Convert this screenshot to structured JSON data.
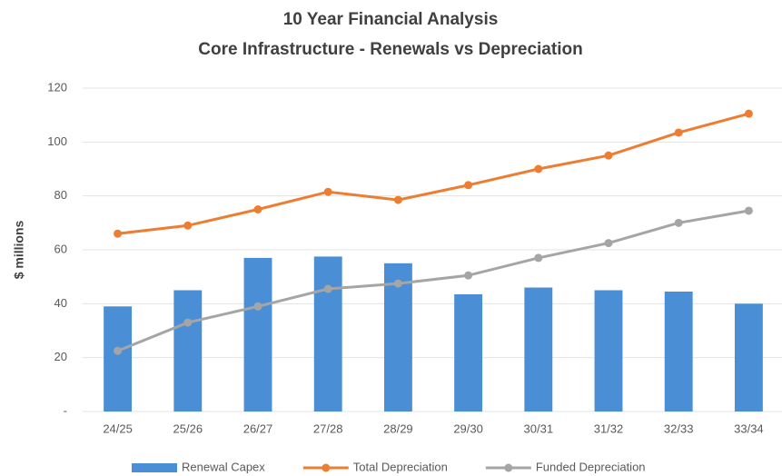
{
  "chart_data": {
    "type": "bar_line",
    "title": "10 Year Financial Analysis",
    "subtitle": "Core Infrastructure - Renewals vs Depreciation",
    "y_label": "$ millions",
    "categories": [
      "24/25",
      "25/26",
      "26/27",
      "27/28",
      "28/29",
      "29/30",
      "30/31",
      "31/32",
      "32/33",
      "33/34"
    ],
    "series": [
      {
        "name": "Renewal Capex",
        "type": "bar",
        "color": "#4a8fd6",
        "values": [
          39,
          45,
          57,
          57.5,
          55,
          43.5,
          46,
          45,
          44.5,
          40
        ]
      },
      {
        "name": "Total Depreciation",
        "type": "line",
        "color": "#ed7d31",
        "values": [
          66,
          69,
          75,
          81.5,
          78.5,
          84,
          90,
          95,
          103.5,
          110.5
        ]
      },
      {
        "name": "Funded Depreciation",
        "type": "line",
        "color": "#a5a5a5",
        "values": [
          22.5,
          33,
          39,
          45.5,
          47.5,
          50.5,
          57,
          62.5,
          70,
          74.5
        ]
      }
    ],
    "ylim": [
      0,
      120
    ],
    "yticks": [
      {
        "value": 0,
        "label": "-"
      },
      20,
      40,
      60,
      80,
      100,
      120
    ],
    "grid": true,
    "legend": "bottom"
  }
}
